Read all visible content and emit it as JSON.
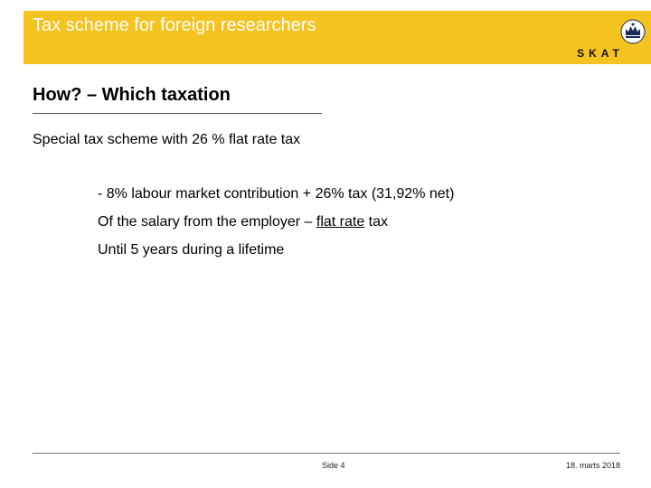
{
  "header": {
    "title": "Tax scheme for foreign researchers",
    "logo_text": "SKAT",
    "bar_color": "#f5c31f"
  },
  "content": {
    "section_title": "How? – Which taxation",
    "intro": "Special tax scheme with 26 % flat rate tax",
    "bullets": {
      "line1": "- 8% labour market contribution + 26% tax (31,92% net)",
      "line2_prefix": "Of the salary from the employer – ",
      "line2_underlined": "flat rate",
      "line2_suffix": " tax",
      "line3": "Until 5 years during a lifetime"
    }
  },
  "footer": {
    "page": "Side 4",
    "date": "18. marts 2018"
  }
}
